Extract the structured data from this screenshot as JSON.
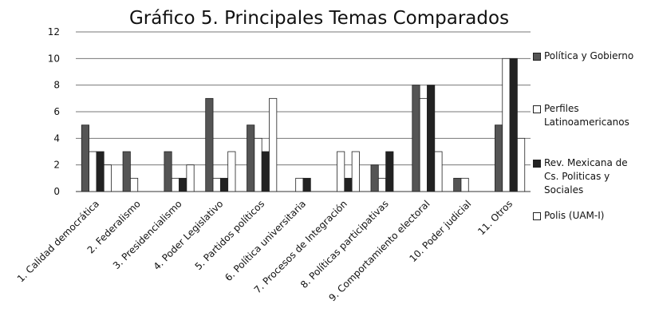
{
  "chart_data": {
    "type": "bar",
    "title": "Gráfico 5. Principales Temas Comparados",
    "categories": [
      "1. Calidad democrática",
      "2. Federalismo",
      "3. Presidencialismo",
      "4. Poder Legislativo",
      "5. Partidos políticos",
      "6. Política universitaria",
      "7. Procesos de Integración",
      "8. Políticas participativas",
      "9. Comportamiento electoral",
      "10. Poder judicial",
      "11. Otros"
    ],
    "series": [
      {
        "name": "Política y Gobierno",
        "color": "#555555",
        "values": [
          5,
          3,
          3,
          7,
          5,
          0,
          0,
          2,
          8,
          1,
          5
        ]
      },
      {
        "name": "Perfiles Latinoamericanos",
        "color": "#ffffff",
        "values": [
          3,
          1,
          1,
          1,
          4,
          1,
          3,
          1,
          7,
          1,
          10
        ]
      },
      {
        "name": "Rev. Mexicana de Cs. Politicas y Sociales",
        "color": "#222222",
        "values": [
          3,
          0,
          1,
          1,
          3,
          1,
          1,
          3,
          8,
          0,
          10
        ]
      },
      {
        "name": "Polis (UAM-I)",
        "color": "#ffffff",
        "values": [
          2,
          0,
          2,
          3,
          7,
          0,
          3,
          0,
          3,
          0,
          4
        ]
      }
    ],
    "ylim": [
      0,
      12
    ],
    "yticks": [
      0,
      2,
      4,
      6,
      8,
      10,
      12
    ],
    "grid": true,
    "legend": "right"
  }
}
